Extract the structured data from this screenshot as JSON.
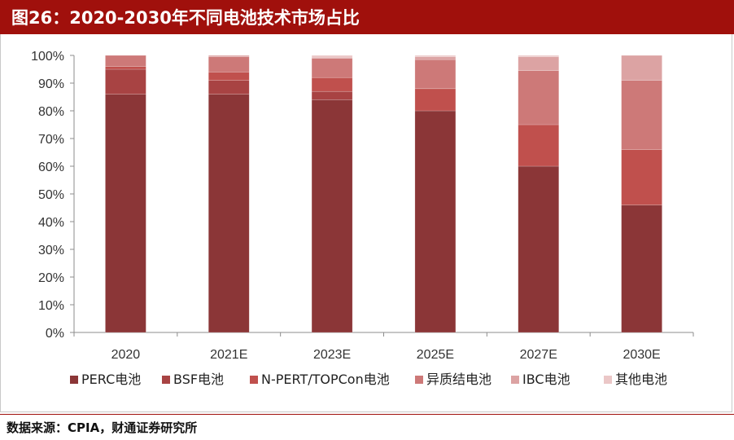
{
  "header": {
    "title": "图26：2020-2030年不同电池技术市场占比"
  },
  "source": "数据来源：CPIA，财通证券研究所",
  "colors": {
    "header_bg": "#a0100c",
    "series": [
      "#8b3637",
      "#a84343",
      "#c0504d",
      "#cd7978",
      "#dca3a3",
      "#ebc7c7"
    ]
  },
  "chart_data": {
    "type": "bar",
    "stacked": true,
    "categories": [
      "2020",
      "2021E",
      "2023E",
      "2025E",
      "2027E",
      "2030E"
    ],
    "y_ticks": [
      "0%",
      "10%",
      "20%",
      "30%",
      "40%",
      "50%",
      "60%",
      "70%",
      "80%",
      "90%",
      "100%"
    ],
    "ylim": [
      0,
      100
    ],
    "legend_position": "bottom",
    "grid": false,
    "series": [
      {
        "name": "PERC电池",
        "values": [
          86,
          86,
          84,
          80,
          60,
          46
        ]
      },
      {
        "name": "BSF电池",
        "values": [
          9,
          5,
          3,
          0,
          0,
          0
        ]
      },
      {
        "name": "N-PERT/TOPCon电池",
        "values": [
          1,
          3,
          5,
          8,
          15,
          20
        ]
      },
      {
        "name": "异质结电池",
        "values": [
          4,
          5.5,
          7,
          10.5,
          19.5,
          25
        ]
      },
      {
        "name": "IBC电池",
        "values": [
          0,
          0.5,
          0,
          1,
          5,
          9
        ]
      },
      {
        "name": "其他电池",
        "values": [
          0,
          0,
          1,
          0.5,
          0.5,
          0
        ]
      }
    ]
  }
}
